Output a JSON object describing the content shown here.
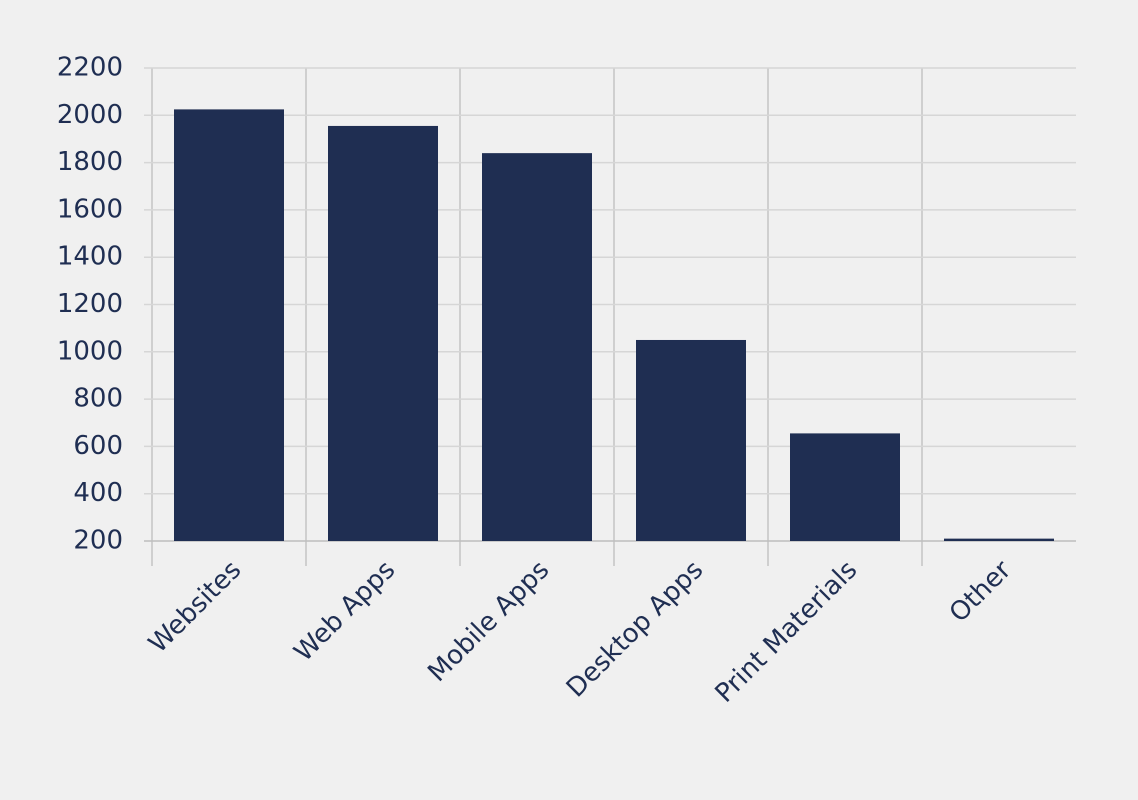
{
  "chart_data": {
    "type": "bar",
    "categories": [
      "Websites",
      "Web Apps",
      "Mobile Apps",
      "Desktop Apps",
      "Print Materials",
      "Other"
    ],
    "values": [
      2025,
      1955,
      1840,
      1050,
      655,
      210
    ],
    "color": "#1f2e52",
    "ylim": [
      200,
      2200
    ],
    "yticks": [
      200,
      400,
      600,
      800,
      1000,
      1200,
      1400,
      1600,
      1800,
      2000,
      2200
    ],
    "grid": true
  }
}
